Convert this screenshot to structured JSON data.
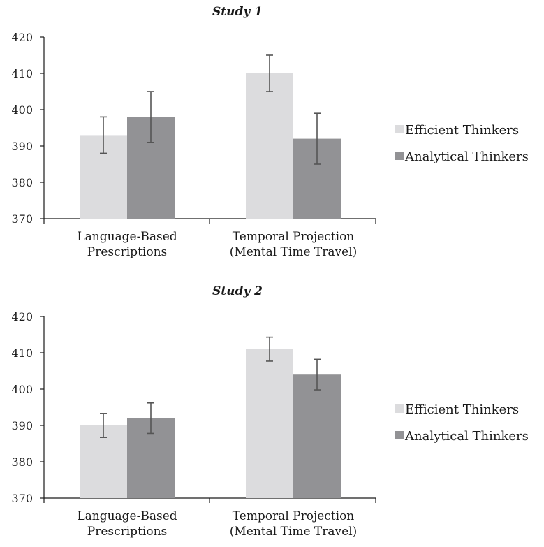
{
  "chart_data": [
    {
      "type": "bar",
      "title": "Study 1",
      "categories": [
        [
          "Language-Based",
          "Prescriptions"
        ],
        [
          "Temporal Projection",
          "(Mental Time Travel)"
        ]
      ],
      "series": [
        {
          "name": "Efficient Thinkers",
          "color": "#dcdcde",
          "values": [
            393,
            410
          ],
          "errors": [
            [
              388,
              398
            ],
            [
              405,
              415
            ]
          ]
        },
        {
          "name": "Analytical Thinkers",
          "color": "#929295",
          "values": [
            398,
            392
          ],
          "errors": [
            [
              391,
              405
            ],
            [
              385,
              399
            ]
          ]
        }
      ],
      "ylim": [
        370,
        420
      ],
      "yticks": [
        "370",
        "380",
        "390",
        "400",
        "410",
        "420"
      ],
      "xlabel": "",
      "ylabel": "",
      "grid": false,
      "legend": "right"
    },
    {
      "type": "bar",
      "title": "Study 2",
      "categories": [
        [
          "Language-Based",
          "Prescriptions"
        ],
        [
          "Temporal Projection",
          "(Mental Time Travel)"
        ]
      ],
      "series": [
        {
          "name": "Efficient Thinkers",
          "color": "#dcdcde",
          "values": [
            390,
            411
          ],
          "errors": [
            [
              386.7,
              393.3
            ],
            [
              407.7,
              414.3
            ]
          ]
        },
        {
          "name": "Analytical Thinkers",
          "color": "#929295",
          "values": [
            392,
            404
          ],
          "errors": [
            [
              387.8,
              396.2
            ],
            [
              399.8,
              408.2
            ]
          ]
        }
      ],
      "ylim": [
        370,
        420
      ],
      "yticks": [
        "370",
        "380",
        "390",
        "400",
        "410",
        "420"
      ],
      "xlabel": "",
      "ylabel": "",
      "grid": false,
      "legend": "right"
    }
  ]
}
